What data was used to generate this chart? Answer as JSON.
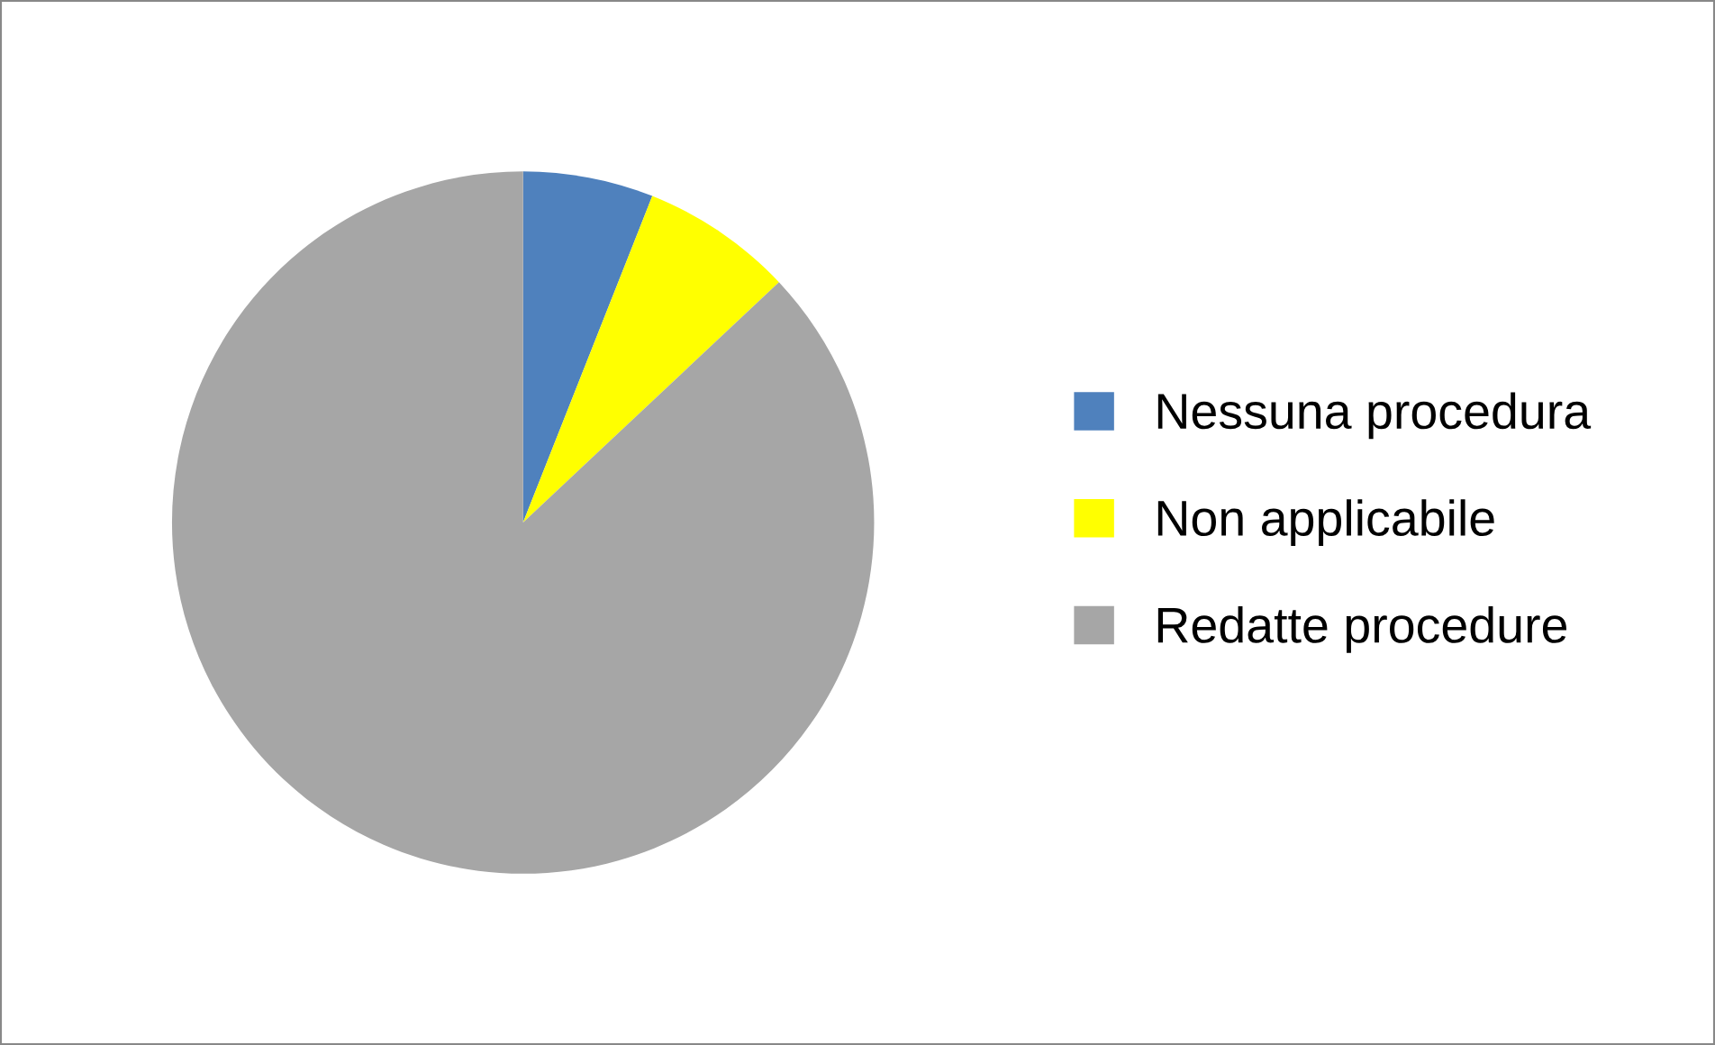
{
  "chart_data": {
    "type": "pie",
    "categories": [
      "Nessuna procedura",
      "Non applicabile",
      "Redatte procedure"
    ],
    "values": [
      6,
      7,
      87
    ],
    "colors": [
      "#4f81bd",
      "#ffff00",
      "#a6a6a6"
    ],
    "legend": "right"
  }
}
